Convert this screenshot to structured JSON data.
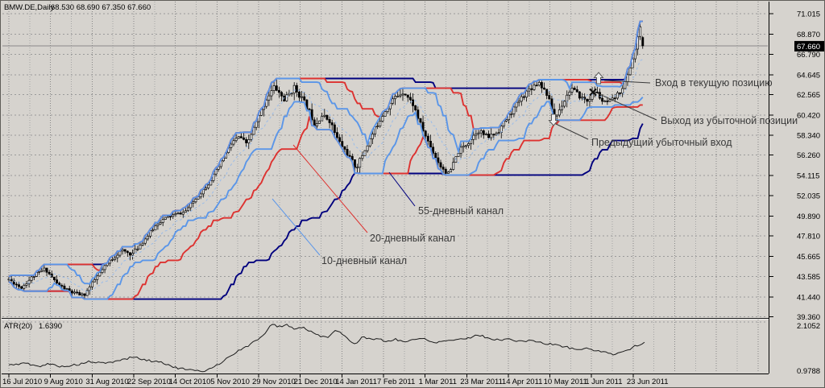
{
  "window": {
    "title": "BMW.DE,Daily",
    "ohlc_text": "68.530 68.690 67.350 67.660"
  },
  "colors": {
    "background": "#d6d3ce",
    "grid": "#9a9a9a",
    "candle": "#000000",
    "channel55": "#00007e",
    "channel20": "#dd3230",
    "channel10": "#5b96e8",
    "annotation": "#3a3a3a",
    "current_price_line": "#8a8a8a",
    "price_tag_bg": "#000000",
    "price_tag_text": "#ffffff"
  },
  "chart_data": {
    "type": "candlestick",
    "symbol": "BMW.DE",
    "timeframe": "Daily",
    "last_bar": {
      "open": 68.53,
      "high": 68.69,
      "low": 67.35,
      "close": 67.66
    },
    "current_price": 67.66,
    "current_price_label": "67.660",
    "price_axis_ticks": [
      71.015,
      68.87,
      66.79,
      64.645,
      62.565,
      60.42,
      58.34,
      56.26,
      54.115,
      52.035,
      49.89,
      47.81,
      45.665,
      43.585,
      41.44,
      39.36
    ],
    "date_axis_ticks": [
      "16 Jul 2010",
      "9 Aug 2010",
      "31 Aug 2010",
      "22 Sep 2010",
      "14 Oct 2010",
      "5 Nov 2010",
      "29 Nov 2010",
      "21 Dec 2010",
      "14 Jan 2011",
      "7 Feb 2011",
      "1 Mar 2011",
      "23 Mar 2011",
      "14 Apr 2011",
      "10 May 2011",
      "1 Jun 2011",
      "23 Jun 2011"
    ],
    "close_path": [
      [
        10,
        43.3
      ],
      [
        25,
        42.4
      ],
      [
        40,
        43.6
      ],
      [
        55,
        44.4
      ],
      [
        70,
        42.8
      ],
      [
        88,
        41.9
      ],
      [
        103,
        41.6
      ],
      [
        118,
        43.4
      ],
      [
        135,
        45.2
      ],
      [
        150,
        46.3
      ],
      [
        163,
        45.9
      ],
      [
        180,
        47.6
      ],
      [
        195,
        49.2
      ],
      [
        210,
        49.9
      ],
      [
        228,
        50.3
      ],
      [
        243,
        51.8
      ],
      [
        258,
        53.3
      ],
      [
        272,
        55.3
      ],
      [
        287,
        57.6
      ],
      [
        297,
        58.2
      ],
      [
        305,
        57.3
      ],
      [
        318,
        59.8
      ],
      [
        330,
        62.2
      ],
      [
        340,
        63.4
      ],
      [
        352,
        62.0
      ],
      [
        364,
        63.3
      ],
      [
        372,
        62.4
      ],
      [
        382,
        61.0
      ],
      [
        390,
        59.4
      ],
      [
        398,
        60.4
      ],
      [
        408,
        59.9
      ],
      [
        418,
        57.9
      ],
      [
        430,
        56.4
      ],
      [
        441,
        54.9
      ],
      [
        452,
        56.8
      ],
      [
        464,
        58.9
      ],
      [
        476,
        60.8
      ],
      [
        488,
        62.2
      ],
      [
        500,
        62.9
      ],
      [
        512,
        61.5
      ],
      [
        522,
        59.2
      ],
      [
        534,
        57.0
      ],
      [
        545,
        55.2
      ],
      [
        556,
        54.2
      ],
      [
        568,
        56.6
      ],
      [
        580,
        57.6
      ],
      [
        592,
        58.9
      ],
      [
        604,
        58.1
      ],
      [
        616,
        58.6
      ],
      [
        630,
        60.3
      ],
      [
        643,
        61.9
      ],
      [
        655,
        63.1
      ],
      [
        668,
        63.9
      ],
      [
        678,
        62.6
      ],
      [
        688,
        60.1
      ],
      [
        697,
        61.6
      ],
      [
        708,
        63.3
      ],
      [
        718,
        62.4
      ],
      [
        728,
        61.9
      ],
      [
        738,
        63.0
      ],
      [
        748,
        61.7
      ],
      [
        758,
        61.9
      ],
      [
        768,
        62.8
      ],
      [
        776,
        64.0
      ],
      [
        783,
        66.0
      ],
      [
        789,
        67.8
      ],
      [
        794,
        69.9
      ],
      [
        797,
        70.3
      ],
      [
        800,
        67.9
      ]
    ],
    "channels": [
      {
        "period": 55,
        "label": "55-дневный канал",
        "color": "#00007e"
      },
      {
        "period": 20,
        "label": "20-дневный канал",
        "color": "#dd3230"
      },
      {
        "period": 10,
        "label": "10-дневный канал",
        "color": "#5b96e8"
      }
    ],
    "indicator": {
      "name": "ATR(20)",
      "value": "1.6390",
      "scale_top": "2.1052",
      "scale_bottom": "0.9788",
      "path": [
        [
          10,
          1.13
        ],
        [
          30,
          1.18
        ],
        [
          45,
          1.1
        ],
        [
          60,
          1.16
        ],
        [
          75,
          1.1
        ],
        [
          95,
          1.14
        ],
        [
          110,
          1.21
        ],
        [
          130,
          1.17
        ],
        [
          150,
          1.25
        ],
        [
          165,
          1.32
        ],
        [
          180,
          1.24
        ],
        [
          200,
          1.2
        ],
        [
          215,
          1.08
        ],
        [
          235,
          1.02
        ],
        [
          250,
          0.98
        ],
        [
          270,
          1.15
        ],
        [
          290,
          1.4
        ],
        [
          310,
          1.6
        ],
        [
          325,
          1.8
        ],
        [
          337,
          2.06
        ],
        [
          345,
          2.0
        ],
        [
          355,
          2.04
        ],
        [
          365,
          1.95
        ],
        [
          375,
          1.99
        ],
        [
          385,
          1.88
        ],
        [
          395,
          1.8
        ],
        [
          405,
          1.76
        ],
        [
          415,
          1.92
        ],
        [
          422,
          1.85
        ],
        [
          432,
          1.7
        ],
        [
          440,
          1.62
        ],
        [
          450,
          1.78
        ],
        [
          458,
          1.72
        ],
        [
          470,
          1.71
        ],
        [
          480,
          1.66
        ],
        [
          490,
          1.72
        ],
        [
          500,
          1.66
        ],
        [
          512,
          1.7
        ],
        [
          525,
          1.74
        ],
        [
          538,
          1.64
        ],
        [
          550,
          1.68
        ],
        [
          565,
          1.71
        ],
        [
          580,
          1.74
        ],
        [
          592,
          1.82
        ],
        [
          602,
          1.76
        ],
        [
          615,
          1.7
        ],
        [
          630,
          1.72
        ],
        [
          645,
          1.66
        ],
        [
          660,
          1.7
        ],
        [
          672,
          1.62
        ],
        [
          685,
          1.6
        ],
        [
          700,
          1.55
        ],
        [
          715,
          1.48
        ],
        [
          730,
          1.51
        ],
        [
          745,
          1.43
        ],
        [
          760,
          1.38
        ],
        [
          775,
          1.45
        ],
        [
          790,
          1.58
        ],
        [
          800,
          1.639
        ]
      ]
    }
  },
  "annotations": {
    "entry_current": {
      "text": "Вход в текущую позицию"
    },
    "exit_loss": {
      "text": "Выход из убыточной позиции"
    },
    "prev_loss_entry": {
      "text": "Предыдущий убыточный вход"
    },
    "ch55": {
      "text": "55-дневный канал"
    },
    "ch20": {
      "text": "20-дневный канал"
    },
    "ch10": {
      "text": "10-дневный канал"
    }
  }
}
